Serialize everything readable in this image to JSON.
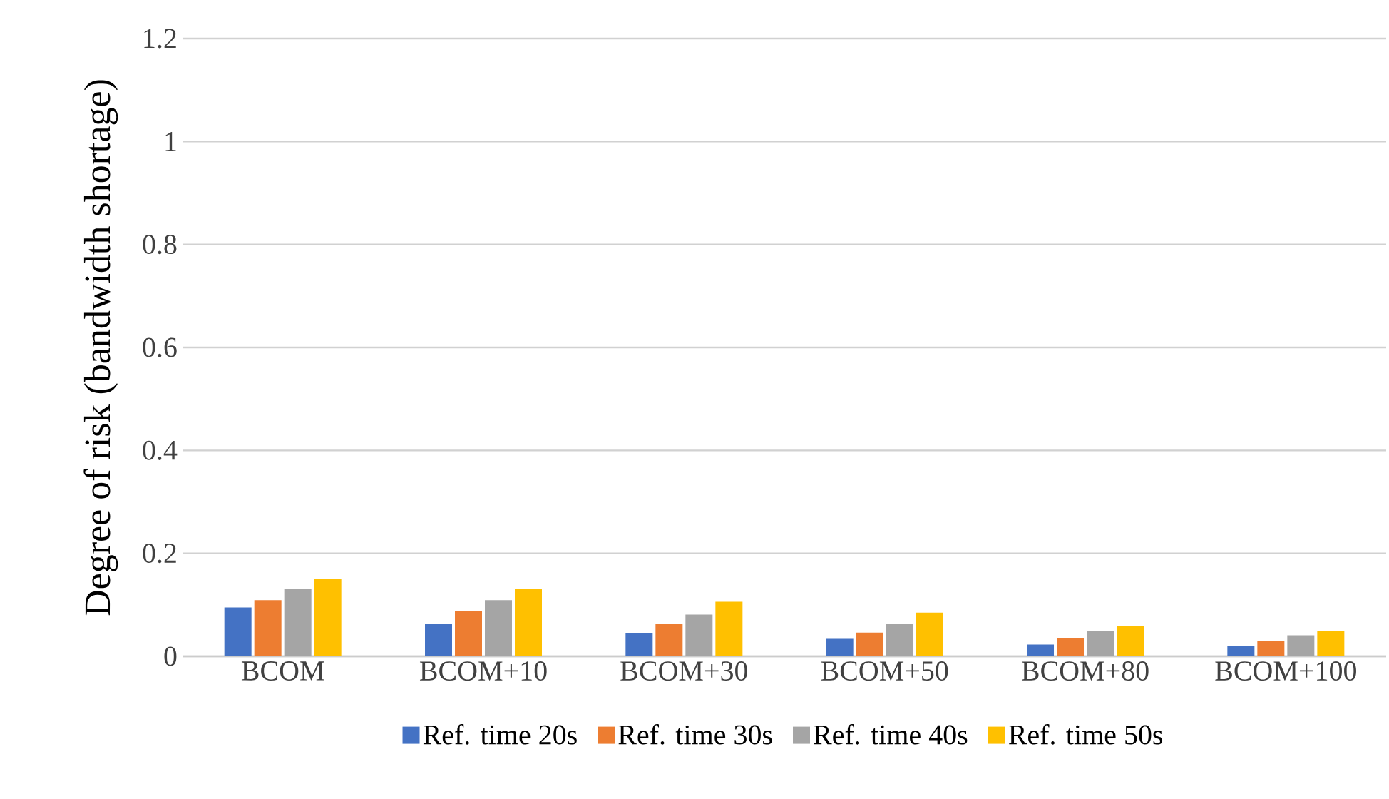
{
  "chart_data": {
    "type": "bar",
    "ylabel": "Degree of risk (bandwidth shortage)",
    "categories": [
      "BCOM",
      "BCOM+10",
      "BCOM+30",
      "BCOM+50",
      "BCOM+80",
      "BCOM+100"
    ],
    "series": [
      {
        "name": "Ref. time 20s",
        "color": "#4472c4",
        "values": [
          0.095,
          0.063,
          0.045,
          0.034,
          0.023,
          0.02
        ]
      },
      {
        "name": "Ref. time 30s",
        "color": "#ed7d31",
        "values": [
          0.109,
          0.088,
          0.063,
          0.046,
          0.035,
          0.03
        ]
      },
      {
        "name": "Ref. time 40s",
        "color": "#a5a5a5",
        "values": [
          0.131,
          0.109,
          0.081,
          0.063,
          0.049,
          0.041
        ]
      },
      {
        "name": "Ref. time 50s",
        "color": "#ffc000",
        "values": [
          0.15,
          0.131,
          0.106,
          0.085,
          0.059,
          0.049
        ]
      }
    ],
    "ylim": [
      0,
      1.2
    ],
    "yticks": [
      0,
      0.2,
      0.4,
      0.6,
      0.8,
      1,
      1.2
    ],
    "grid": "y",
    "legend": "bottom"
  }
}
